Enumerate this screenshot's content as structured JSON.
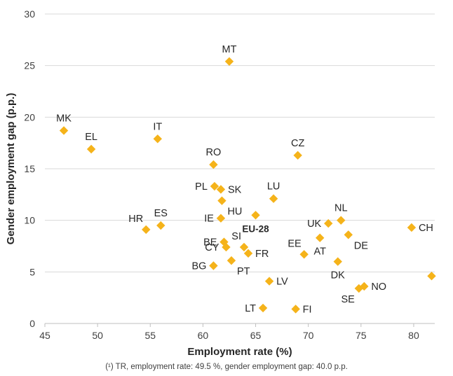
{
  "chart_data": {
    "type": "scatter",
    "xlabel": "Employment rate (%)",
    "ylabel": "Gender employment gap (p.p.)",
    "xlim": [
      45,
      82
    ],
    "ylim": [
      0,
      30
    ],
    "xticks": [
      45,
      50,
      55,
      60,
      65,
      70,
      75,
      80
    ],
    "yticks": [
      0,
      5,
      10,
      15,
      20,
      25,
      30
    ],
    "grid": "horizontal",
    "marker": "diamond",
    "marker_color": "#F5B31A",
    "grid_color": "#D9D9D9",
    "points": [
      {
        "label": "MT",
        "x": 62.5,
        "y": 25.4,
        "label_pos": "above"
      },
      {
        "label": "MK",
        "x": 46.8,
        "y": 18.7,
        "label_pos": "above"
      },
      {
        "label": "EL",
        "x": 49.4,
        "y": 16.9,
        "label_pos": "above"
      },
      {
        "label": "IT",
        "x": 55.7,
        "y": 17.9,
        "label_pos": "above"
      },
      {
        "label": "CZ",
        "x": 69.0,
        "y": 16.3,
        "label_pos": "above"
      },
      {
        "label": "RO",
        "x": 61.0,
        "y": 15.4,
        "label_pos": "above"
      },
      {
        "label": "PL",
        "x": 61.1,
        "y": 13.3,
        "label_pos": "left"
      },
      {
        "label": "SK",
        "x": 61.7,
        "y": 13.0,
        "label_pos": "right"
      },
      {
        "label": "LU",
        "x": 66.7,
        "y": 12.1,
        "label_pos": "above"
      },
      {
        "label": "HU",
        "x": 61.8,
        "y": 11.9,
        "label_pos": "below-right"
      },
      {
        "label": "HR",
        "x": 54.6,
        "y": 9.1,
        "label_pos": "above-left"
      },
      {
        "label": "ES",
        "x": 56.0,
        "y": 9.5,
        "label_pos": "above"
      },
      {
        "label": "IE",
        "x": 61.7,
        "y": 10.2,
        "label_pos": "left"
      },
      {
        "label": "EU-28",
        "x": 65.0,
        "y": 10.5,
        "label_pos": "below",
        "bold": true
      },
      {
        "label": "UK",
        "x": 71.9,
        "y": 9.7,
        "label_pos": "left"
      },
      {
        "label": "NL",
        "x": 73.1,
        "y": 10.0,
        "label_pos": "above"
      },
      {
        "label": "CH",
        "x": 79.8,
        "y": 9.3,
        "label_pos": "right"
      },
      {
        "label": "BE",
        "x": 62.0,
        "y": 7.9,
        "label_pos": "left"
      },
      {
        "label": "SI",
        "x": 63.9,
        "y": 7.4,
        "label_pos": "above-left"
      },
      {
        "label": "CY",
        "x": 62.2,
        "y": 7.4,
        "label_pos": "left"
      },
      {
        "label": "FR",
        "x": 64.3,
        "y": 6.8,
        "label_pos": "right"
      },
      {
        "label": "PT",
        "x": 62.7,
        "y": 6.1,
        "label_pos": "below-right"
      },
      {
        "label": "BG",
        "x": 61.0,
        "y": 5.6,
        "label_pos": "left"
      },
      {
        "label": "EE",
        "x": 69.6,
        "y": 6.7,
        "label_pos": "above-left"
      },
      {
        "label": "AT",
        "x": 71.1,
        "y": 8.3,
        "label_pos": "below"
      },
      {
        "label": "DE",
        "x": 73.8,
        "y": 8.6,
        "label_pos": "below-right"
      },
      {
        "label": "DK",
        "x": 72.8,
        "y": 6.0,
        "label_pos": "below"
      },
      {
        "label": "LV",
        "x": 66.3,
        "y": 4.1,
        "label_pos": "right"
      },
      {
        "label": "SE",
        "x": 74.8,
        "y": 3.4,
        "label_pos": "below-left"
      },
      {
        "label": "NO",
        "x": 75.3,
        "y": 3.6,
        "label_pos": "right"
      },
      {
        "label": "LT",
        "x": 65.7,
        "y": 1.5,
        "label_pos": "left"
      },
      {
        "label": "FI",
        "x": 68.8,
        "y": 1.4,
        "label_pos": "right"
      },
      {
        "label": "",
        "x": 81.7,
        "y": 4.6
      }
    ],
    "footnote": "(¹) TR, employment rate: 49.5 %, gender employment gap: 40.0 p.p."
  }
}
